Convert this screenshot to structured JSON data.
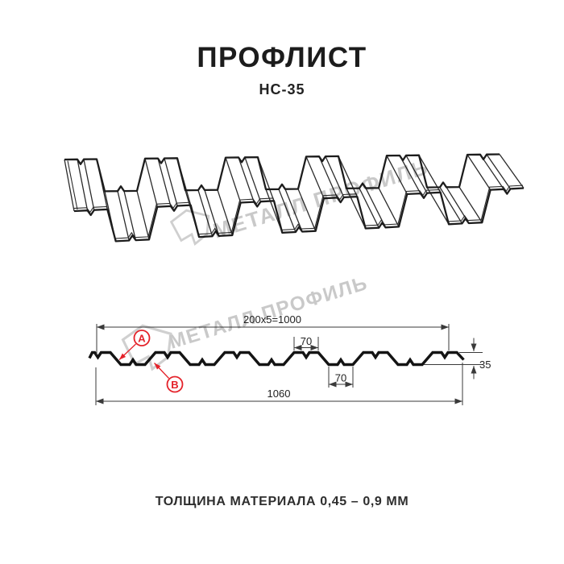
{
  "header": {
    "title": "ПРОФЛИСТ",
    "subtitle": "НС-35"
  },
  "footer": {
    "text": "ТОЛЩИНА МАТЕРИАЛА 0,45 – 0,9 ММ"
  },
  "watermark": {
    "brand": "МЕТАЛЛ ПРОФИЛЬ"
  },
  "section": {
    "dim_cover_width": "200x5=1000",
    "dim_crest_width": "70",
    "dim_valley_width": "70",
    "dim_total_width": "1060",
    "dim_height": "35",
    "marker_a": "А",
    "marker_b": "В"
  },
  "colors": {
    "marker_red": "#e4222a",
    "profile_line": "#141414",
    "dim_line": "#3a3a3a",
    "watermark_gray": "#c9c9c9"
  }
}
